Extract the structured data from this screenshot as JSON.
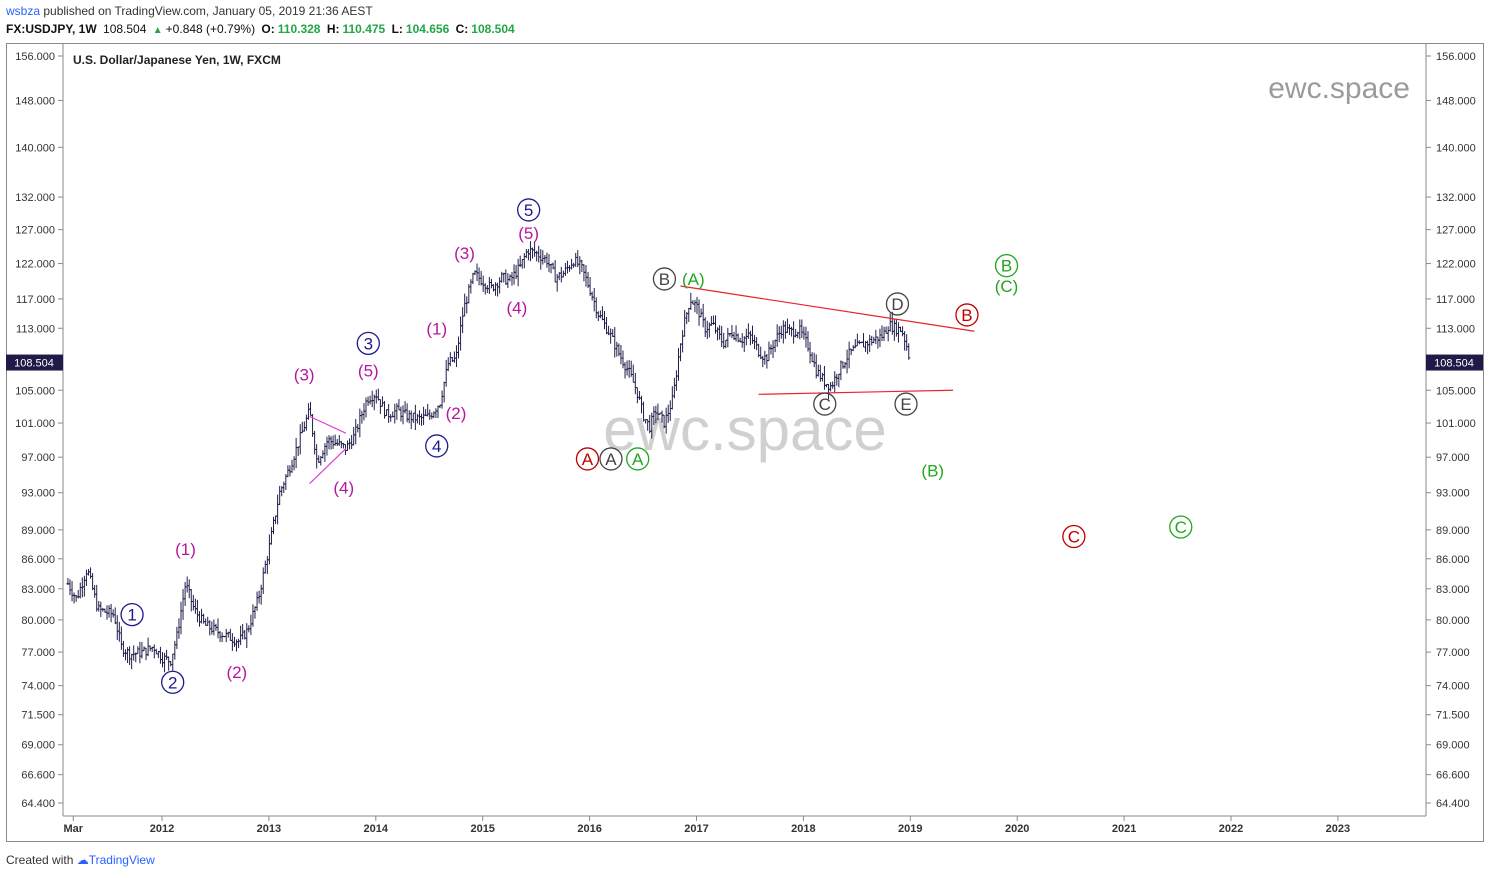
{
  "header": {
    "author": "wsbza",
    "published_text": "published on TradingView.com, January 05, 2019 21:36 AEST",
    "symbol": "FX:USDJPY, 1W",
    "last": "108.504",
    "change": "+0.848 (+0.79%)",
    "o_label": "O:",
    "o_value": "110.328",
    "h_label": "H:",
    "h_value": "110.475",
    "l_label": "L:",
    "l_value": "104.656",
    "c_label": "C:",
    "c_value": "108.504"
  },
  "footer": {
    "created_with": "Created with",
    "brand": "TradingView"
  },
  "colors": {
    "blue": "#1a1a8c",
    "purple": "#b5179e",
    "green": "#22a620",
    "red": "#c00000",
    "grey": "#444444",
    "trendline": "#e8242b",
    "triangle": "#e040d0",
    "bars": "#1f1f4a",
    "price_tag": "#1f1a47"
  },
  "chart_data": {
    "type": "ohlc",
    "title": "U.S. Dollar/Japanese Yen, 1W, FXCM",
    "watermark_corner": "ewc.space",
    "watermark_center": "ewc.space",
    "y_scale": "log",
    "y_ticks": [
      "156.000",
      "148.000",
      "140.000",
      "132.000",
      "127.000",
      "122.000",
      "117.000",
      "113.000",
      "105.000",
      "101.000",
      "97.000",
      "93.000",
      "89.000",
      "86.000",
      "83.000",
      "80.000",
      "77.000",
      "74.000",
      "71.500",
      "69.000",
      "66.600",
      "64.400"
    ],
    "last_price_label": "108.504",
    "x_ticks": [
      {
        "label": "Mar",
        "t": 2011.17
      },
      {
        "label": "2012",
        "t": 2012.0
      },
      {
        "label": "2013",
        "t": 2013.0
      },
      {
        "label": "2014",
        "t": 2014.0
      },
      {
        "label": "2015",
        "t": 2015.0
      },
      {
        "label": "2016",
        "t": 2016.0
      },
      {
        "label": "2017",
        "t": 2017.0
      },
      {
        "label": "2018",
        "t": 2018.0
      },
      {
        "label": "2019",
        "t": 2019.0
      },
      {
        "label": "2020",
        "t": 2020.0
      },
      {
        "label": "2021",
        "t": 2021.0
      },
      {
        "label": "2022",
        "t": 2022.0
      },
      {
        "label": "2023",
        "t": 2023.0
      }
    ],
    "price_path": [
      [
        2011.12,
        83.5
      ],
      [
        2011.2,
        82.0
      ],
      [
        2011.3,
        85.0
      ],
      [
        2011.4,
        81.0
      ],
      [
        2011.55,
        80.5
      ],
      [
        2011.62,
        77.5
      ],
      [
        2011.7,
        76.8
      ],
      [
        2011.82,
        77.0
      ],
      [
        2011.92,
        77.5
      ],
      [
        2012.0,
        76.5
      ],
      [
        2012.08,
        76.2
      ],
      [
        2012.14,
        78.5
      ],
      [
        2012.22,
        83.5
      ],
      [
        2012.3,
        81.0
      ],
      [
        2012.4,
        79.5
      ],
      [
        2012.5,
        79.0
      ],
      [
        2012.6,
        78.5
      ],
      [
        2012.72,
        78.0
      ],
      [
        2012.8,
        79.0
      ],
      [
        2012.9,
        82.0
      ],
      [
        2013.0,
        87.0
      ],
      [
        2013.1,
        93.0
      ],
      [
        2013.2,
        96.0
      ],
      [
        2013.3,
        99.5
      ],
      [
        2013.38,
        102.5
      ],
      [
        2013.45,
        96.5
      ],
      [
        2013.55,
        99.0
      ],
      [
        2013.65,
        98.5
      ],
      [
        2013.72,
        98.0
      ],
      [
        2013.8,
        99.5
      ],
      [
        2013.92,
        104.0
      ],
      [
        2014.0,
        104.6
      ],
      [
        2014.1,
        102.0
      ],
      [
        2014.2,
        102.5
      ],
      [
        2014.3,
        101.8
      ],
      [
        2014.4,
        101.5
      ],
      [
        2014.5,
        101.8
      ],
      [
        2014.6,
        103.5
      ],
      [
        2014.68,
        108.5
      ],
      [
        2014.75,
        109.0
      ],
      [
        2014.82,
        115.5
      ],
      [
        2014.92,
        120.5
      ],
      [
        2015.0,
        119.5
      ],
      [
        2015.08,
        118.5
      ],
      [
        2015.18,
        120.0
      ],
      [
        2015.25,
        119.5
      ],
      [
        2015.35,
        121.5
      ],
      [
        2015.42,
        124.0
      ],
      [
        2015.5,
        123.5
      ],
      [
        2015.6,
        122.5
      ],
      [
        2015.68,
        120.0
      ],
      [
        2015.75,
        120.5
      ],
      [
        2015.85,
        122.5
      ],
      [
        2015.92,
        121.5
      ],
      [
        2016.0,
        118.5
      ],
      [
        2016.08,
        115.0
      ],
      [
        2016.18,
        112.5
      ],
      [
        2016.28,
        109.5
      ],
      [
        2016.36,
        107.5
      ],
      [
        2016.44,
        105.0
      ],
      [
        2016.5,
        102.0
      ],
      [
        2016.56,
        100.5
      ],
      [
        2016.62,
        102.5
      ],
      [
        2016.7,
        101.0
      ],
      [
        2016.78,
        104.0
      ],
      [
        2016.86,
        112.0
      ],
      [
        2016.94,
        117.0
      ],
      [
        2017.0,
        116.0
      ],
      [
        2017.08,
        113.0
      ],
      [
        2017.15,
        113.5
      ],
      [
        2017.25,
        111.0
      ],
      [
        2017.33,
        112.5
      ],
      [
        2017.42,
        111.5
      ],
      [
        2017.5,
        112.0
      ],
      [
        2017.58,
        110.0
      ],
      [
        2017.65,
        109.0
      ],
      [
        2017.72,
        111.0
      ],
      [
        2017.8,
        113.0
      ],
      [
        2017.88,
        112.5
      ],
      [
        2017.96,
        112.8
      ],
      [
        2018.05,
        110.5
      ],
      [
        2018.12,
        107.5
      ],
      [
        2018.2,
        106.0
      ],
      [
        2018.26,
        105.5
      ],
      [
        2018.33,
        107.5
      ],
      [
        2018.42,
        109.5
      ],
      [
        2018.5,
        110.5
      ],
      [
        2018.58,
        111.0
      ],
      [
        2018.66,
        111.5
      ],
      [
        2018.74,
        112.0
      ],
      [
        2018.8,
        113.5
      ],
      [
        2018.86,
        113.0
      ],
      [
        2018.92,
        112.8
      ],
      [
        2018.97,
        110.5
      ],
      [
        2019.0,
        108.5
      ]
    ],
    "trendlines": [
      {
        "from": [
          2016.85,
          118.8
        ],
        "to": [
          2019.6,
          112.6
        ],
        "style": "upper"
      },
      {
        "from": [
          2017.58,
          104.5
        ],
        "to": [
          2019.4,
          105.0
        ],
        "style": "lower"
      }
    ],
    "triangle_lines": [
      {
        "from": [
          2013.38,
          101.8
        ],
        "to": [
          2013.72,
          99.8
        ]
      },
      {
        "from": [
          2013.38,
          94.0
        ],
        "to": [
          2013.72,
          98.0
        ]
      }
    ],
    "wave_labels": [
      {
        "text": "1",
        "style": "circle",
        "color": "blue",
        "t": 2011.72,
        "p": 80.5
      },
      {
        "text": "2",
        "style": "circle",
        "color": "blue",
        "t": 2012.1,
        "p": 74.3
      },
      {
        "text": "(1)",
        "style": "plain",
        "color": "purple",
        "t": 2012.22,
        "p": 87.0
      },
      {
        "text": "(2)",
        "style": "plain",
        "color": "purple",
        "t": 2012.7,
        "p": 75.2
      },
      {
        "text": "(3)",
        "style": "plain",
        "color": "purple",
        "t": 2013.33,
        "p": 107.0
      },
      {
        "text": "(4)",
        "style": "plain",
        "color": "purple",
        "t": 2013.7,
        "p": 93.6
      },
      {
        "text": "(5)",
        "style": "plain",
        "color": "purple",
        "t": 2013.93,
        "p": 107.5
      },
      {
        "text": "3",
        "style": "circle",
        "color": "blue",
        "t": 2013.93,
        "p": 111.0
      },
      {
        "text": "4",
        "style": "circle",
        "color": "blue",
        "t": 2014.57,
        "p": 98.3
      },
      {
        "text": "(1)",
        "style": "plain",
        "color": "purple",
        "t": 2014.57,
        "p": 113.0
      },
      {
        "text": "(2)",
        "style": "plain",
        "color": "purple",
        "t": 2014.75,
        "p": 102.2
      },
      {
        "text": "(3)",
        "style": "plain",
        "color": "purple",
        "t": 2014.83,
        "p": 123.5
      },
      {
        "text": "(4)",
        "style": "plain",
        "color": "purple",
        "t": 2015.32,
        "p": 115.8
      },
      {
        "text": "(5)",
        "style": "plain",
        "color": "purple",
        "t": 2015.43,
        "p": 126.5
      },
      {
        "text": "5",
        "style": "circle",
        "color": "blue",
        "t": 2015.43,
        "p": 130.0
      },
      {
        "text": "A",
        "style": "circle",
        "color": "red",
        "t": 2015.98,
        "p": 96.8
      },
      {
        "text": "A",
        "style": "circle",
        "color": "grey",
        "t": 2016.2,
        "p": 96.8
      },
      {
        "text": "A",
        "style": "circle",
        "color": "green",
        "t": 2016.45,
        "p": 96.8
      },
      {
        "text": "B",
        "style": "circle",
        "color": "grey",
        "t": 2016.7,
        "p": 119.8
      },
      {
        "text": "(A)",
        "style": "plain",
        "color": "green",
        "t": 2016.97,
        "p": 119.8
      },
      {
        "text": "C",
        "style": "circle",
        "color": "grey",
        "t": 2018.2,
        "p": 103.3
      },
      {
        "text": "D",
        "style": "circle",
        "color": "grey",
        "t": 2018.88,
        "p": 116.3
      },
      {
        "text": "E",
        "style": "circle",
        "color": "grey",
        "t": 2018.96,
        "p": 103.3
      },
      {
        "text": "B",
        "style": "circle",
        "color": "red",
        "t": 2019.53,
        "p": 114.8
      },
      {
        "text": "(B)",
        "style": "plain",
        "color": "green",
        "t": 2019.21,
        "p": 95.5
      },
      {
        "text": "B",
        "style": "circle",
        "color": "green",
        "t": 2019.9,
        "p": 121.7
      },
      {
        "text": "(C)",
        "style": "plain",
        "color": "green",
        "t": 2019.9,
        "p": 118.8
      },
      {
        "text": "C",
        "style": "circle",
        "color": "red",
        "t": 2020.53,
        "p": 88.3
      },
      {
        "text": "C",
        "style": "circle",
        "color": "green",
        "t": 2021.53,
        "p": 89.3
      }
    ]
  }
}
